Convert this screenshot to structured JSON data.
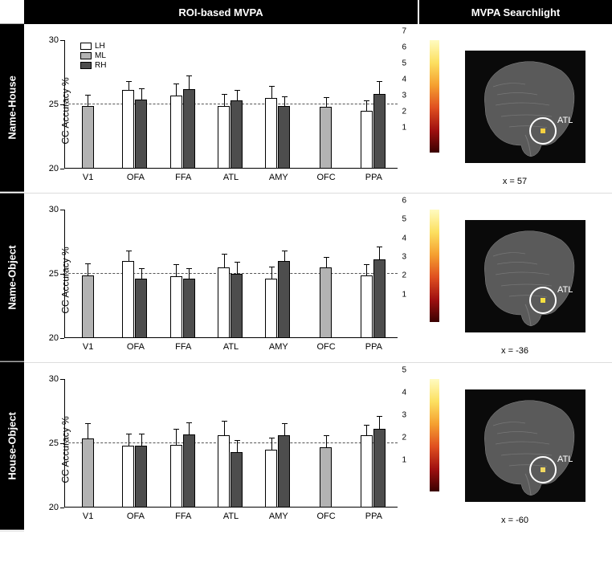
{
  "columns": {
    "left": "ROI-based MVPA",
    "right": "MVPA Searchlight"
  },
  "rows": [
    "Name-House",
    "Name-Object",
    "House-Object"
  ],
  "y_axis": {
    "label": "CC Accuracy %",
    "min": 20,
    "max": 30,
    "ticks": [
      20,
      25,
      30
    ],
    "ref": 25
  },
  "regions": [
    "V1",
    "OFA",
    "FFA",
    "ATL",
    "AMY",
    "OFC",
    "PPA"
  ],
  "legend": [
    {
      "label": "LH",
      "color": "#ffffff"
    },
    {
      "label": "ML",
      "color": "#b3b3b3"
    },
    {
      "label": "RH",
      "color": "#4d4d4d"
    }
  ],
  "bar_colors": {
    "LH": "#ffffff",
    "ML": "#b3b3b3",
    "RH": "#4d4d4d"
  },
  "charts": [
    {
      "row": "Name-House",
      "groups": [
        {
          "region": "V1",
          "bars": [
            {
              "cond": "ML",
              "val": 24.9,
              "err": 0.9
            }
          ]
        },
        {
          "region": "OFA",
          "bars": [
            {
              "cond": "LH",
              "val": 26.1,
              "err": 0.8
            },
            {
              "cond": "RH",
              "val": 25.4,
              "err": 0.9
            }
          ]
        },
        {
          "region": "FFA",
          "bars": [
            {
              "cond": "LH",
              "val": 25.7,
              "err": 1.0
            },
            {
              "cond": "RH",
              "val": 26.2,
              "err": 1.1
            }
          ]
        },
        {
          "region": "ATL",
          "bars": [
            {
              "cond": "LH",
              "val": 24.9,
              "err": 1.0
            },
            {
              "cond": "RH",
              "val": 25.3,
              "err": 0.9
            }
          ]
        },
        {
          "region": "AMY",
          "bars": [
            {
              "cond": "LH",
              "val": 25.5,
              "err": 1.0
            },
            {
              "cond": "RH",
              "val": 24.9,
              "err": 0.8
            }
          ]
        },
        {
          "region": "OFC",
          "bars": [
            {
              "cond": "ML",
              "val": 24.8,
              "err": 0.8
            }
          ]
        },
        {
          "region": "PPA",
          "bars": [
            {
              "cond": "LH",
              "val": 24.5,
              "err": 0.9
            },
            {
              "cond": "RH",
              "val": 25.8,
              "err": 1.1
            }
          ]
        }
      ]
    },
    {
      "row": "Name-Object",
      "groups": [
        {
          "region": "V1",
          "bars": [
            {
              "cond": "ML",
              "val": 24.9,
              "err": 1.0
            }
          ]
        },
        {
          "region": "OFA",
          "bars": [
            {
              "cond": "LH",
              "val": 26.0,
              "err": 0.9
            },
            {
              "cond": "RH",
              "val": 24.6,
              "err": 0.9
            }
          ]
        },
        {
          "region": "FFA",
          "bars": [
            {
              "cond": "LH",
              "val": 24.8,
              "err": 1.0
            },
            {
              "cond": "RH",
              "val": 24.6,
              "err": 0.9
            }
          ]
        },
        {
          "region": "ATL",
          "bars": [
            {
              "cond": "LH",
              "val": 25.5,
              "err": 1.1
            },
            {
              "cond": "RH",
              "val": 25.0,
              "err": 1.0
            }
          ]
        },
        {
          "region": "AMY",
          "bars": [
            {
              "cond": "LH",
              "val": 24.6,
              "err": 1.0
            },
            {
              "cond": "RH",
              "val": 26.0,
              "err": 0.9
            }
          ]
        },
        {
          "region": "OFC",
          "bars": [
            {
              "cond": "ML",
              "val": 25.5,
              "err": 0.9
            }
          ]
        },
        {
          "region": "PPA",
          "bars": [
            {
              "cond": "LH",
              "val": 24.9,
              "err": 0.9
            },
            {
              "cond": "RH",
              "val": 26.1,
              "err": 1.1
            }
          ]
        }
      ]
    },
    {
      "row": "House-Object",
      "groups": [
        {
          "region": "V1",
          "bars": [
            {
              "cond": "ML",
              "val": 25.4,
              "err": 1.2
            }
          ]
        },
        {
          "region": "OFA",
          "bars": [
            {
              "cond": "LH",
              "val": 24.8,
              "err": 1.0
            },
            {
              "cond": "RH",
              "val": 24.8,
              "err": 1.0
            }
          ]
        },
        {
          "region": "FFA",
          "bars": [
            {
              "cond": "LH",
              "val": 24.9,
              "err": 1.3
            },
            {
              "cond": "RH",
              "val": 25.7,
              "err": 1.0
            }
          ]
        },
        {
          "region": "ATL",
          "bars": [
            {
              "cond": "LH",
              "val": 25.6,
              "err": 1.2
            },
            {
              "cond": "RH",
              "val": 24.3,
              "err": 1.0
            }
          ]
        },
        {
          "region": "AMY",
          "bars": [
            {
              "cond": "LH",
              "val": 24.5,
              "err": 1.0
            },
            {
              "cond": "RH",
              "val": 25.6,
              "err": 1.0
            }
          ]
        },
        {
          "region": "OFC",
          "bars": [
            {
              "cond": "ML",
              "val": 24.7,
              "err": 1.0
            }
          ]
        },
        {
          "region": "PPA",
          "bars": [
            {
              "cond": "LH",
              "val": 25.6,
              "err": 0.9
            },
            {
              "cond": "RH",
              "val": 26.1,
              "err": 1.1
            }
          ]
        }
      ]
    }
  ],
  "searchlights": [
    {
      "row": "Name-House",
      "caption": "x = 57",
      "label": "ATL",
      "colorbar_max": 7,
      "ticks": [
        1,
        2,
        3,
        4,
        5,
        6,
        7
      ],
      "hotspot_color": "#f5d040"
    },
    {
      "row": "Name-Object",
      "caption": "x = -36",
      "label": "ATL",
      "colorbar_max": 6,
      "ticks": [
        1,
        2,
        3,
        4,
        5,
        6
      ],
      "hotspot_color": "#f5e040"
    },
    {
      "row": "House-Object",
      "caption": "x = -60",
      "label": "ATL",
      "colorbar_max": 5,
      "ticks": [
        1,
        2,
        3,
        4,
        5
      ],
      "hotspot_color": "#f0d860"
    }
  ],
  "colorbar_gradient": [
    "#3a0000",
    "#a01010",
    "#e05020",
    "#f5a030",
    "#fce060",
    "#fffbc0"
  ]
}
